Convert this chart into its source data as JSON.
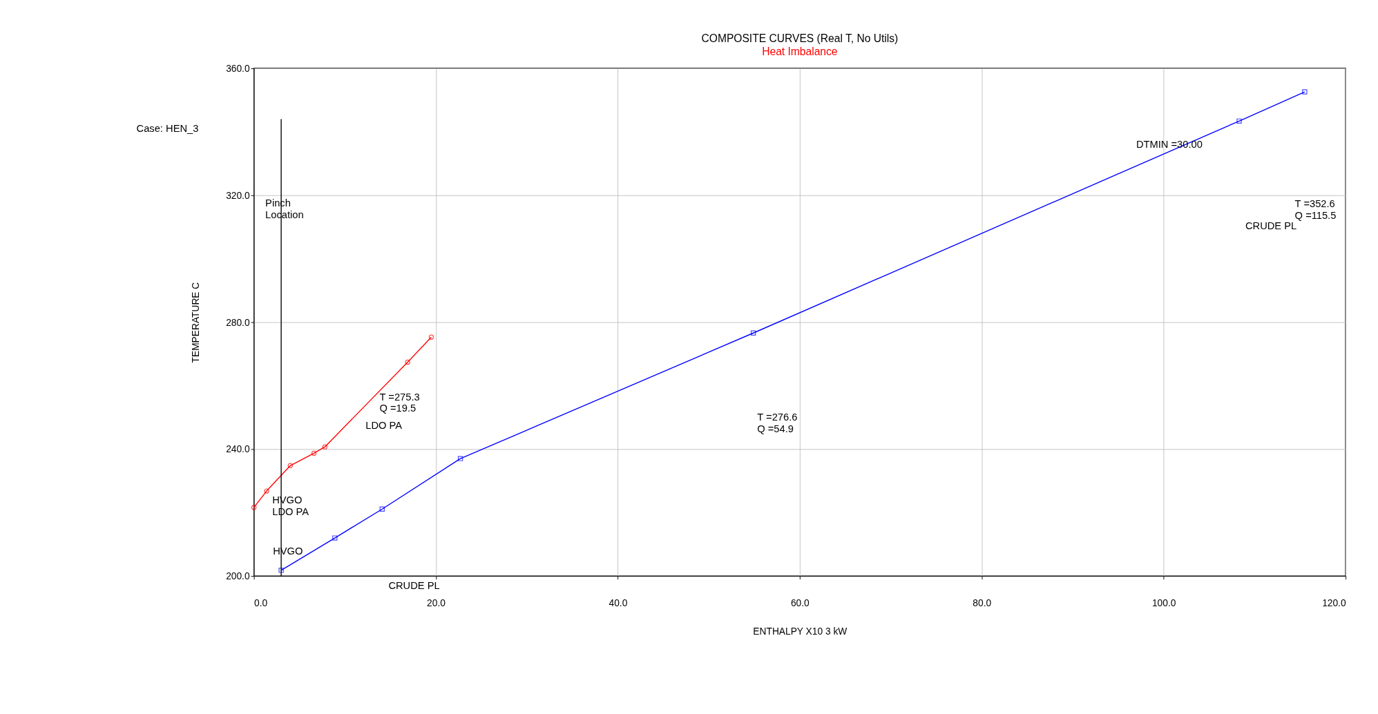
{
  "chart_data": {
    "type": "line",
    "title": "COMPOSITE CURVES (Real T, No Utils)",
    "subtitle": "Heat Imbalance",
    "xlabel": "ENTHALPY X10 3 kW",
    "ylabel": "TEMPERATURE C",
    "xlim": [
      0,
      120
    ],
    "ylim": [
      200,
      360
    ],
    "xticks": [
      {
        "value": 0,
        "label": "0.0"
      },
      {
        "value": 20,
        "label": "20.0"
      },
      {
        "value": 40,
        "label": "40.0"
      },
      {
        "value": 60,
        "label": "60.0"
      },
      {
        "value": 80,
        "label": "80.0"
      },
      {
        "value": 100,
        "label": "100.0"
      },
      {
        "value": 120,
        "label": "120.0"
      }
    ],
    "yticks": [
      {
        "value": 200,
        "label": "200.0"
      },
      {
        "value": 240,
        "label": "240.0"
      },
      {
        "value": 280,
        "label": "280.0"
      },
      {
        "value": 320,
        "label": "320.0"
      },
      {
        "value": 360,
        "label": "360.0"
      }
    ],
    "grid": true,
    "series": [
      {
        "color": "#ff0000",
        "marker": "circle",
        "x": [
          0,
          1.4,
          4.0,
          6.6,
          7.8,
          16.9,
          19.5
        ],
        "values": [
          221.6,
          226.8,
          234.8,
          238.7,
          240.7,
          267.4,
          275.3
        ]
      },
      {
        "color": "#0000ff",
        "marker": "square",
        "x": [
          3.0,
          8.9,
          14.1,
          22.7,
          54.9,
          108.3,
          115.5
        ],
        "values": [
          201.8,
          212.0,
          221.1,
          237.0,
          276.6,
          343.4,
          352.6
        ]
      }
    ],
    "ref_lines": [
      {
        "axis": "x",
        "value": 3.0,
        "label": "Pinch\nLocation",
        "color": "#000000"
      }
    ],
    "annotations": [
      "Case: HEN_3",
      "DTMIN =30.00",
      "T =352.6\nQ =115.5",
      "CRUDE PL",
      "T =276.6\nQ =54.9",
      "T =275.3\nQ =19.5",
      "LDO PA",
      "HVGO\nLDO PA",
      "HVGO",
      "CRUDE PL"
    ]
  }
}
